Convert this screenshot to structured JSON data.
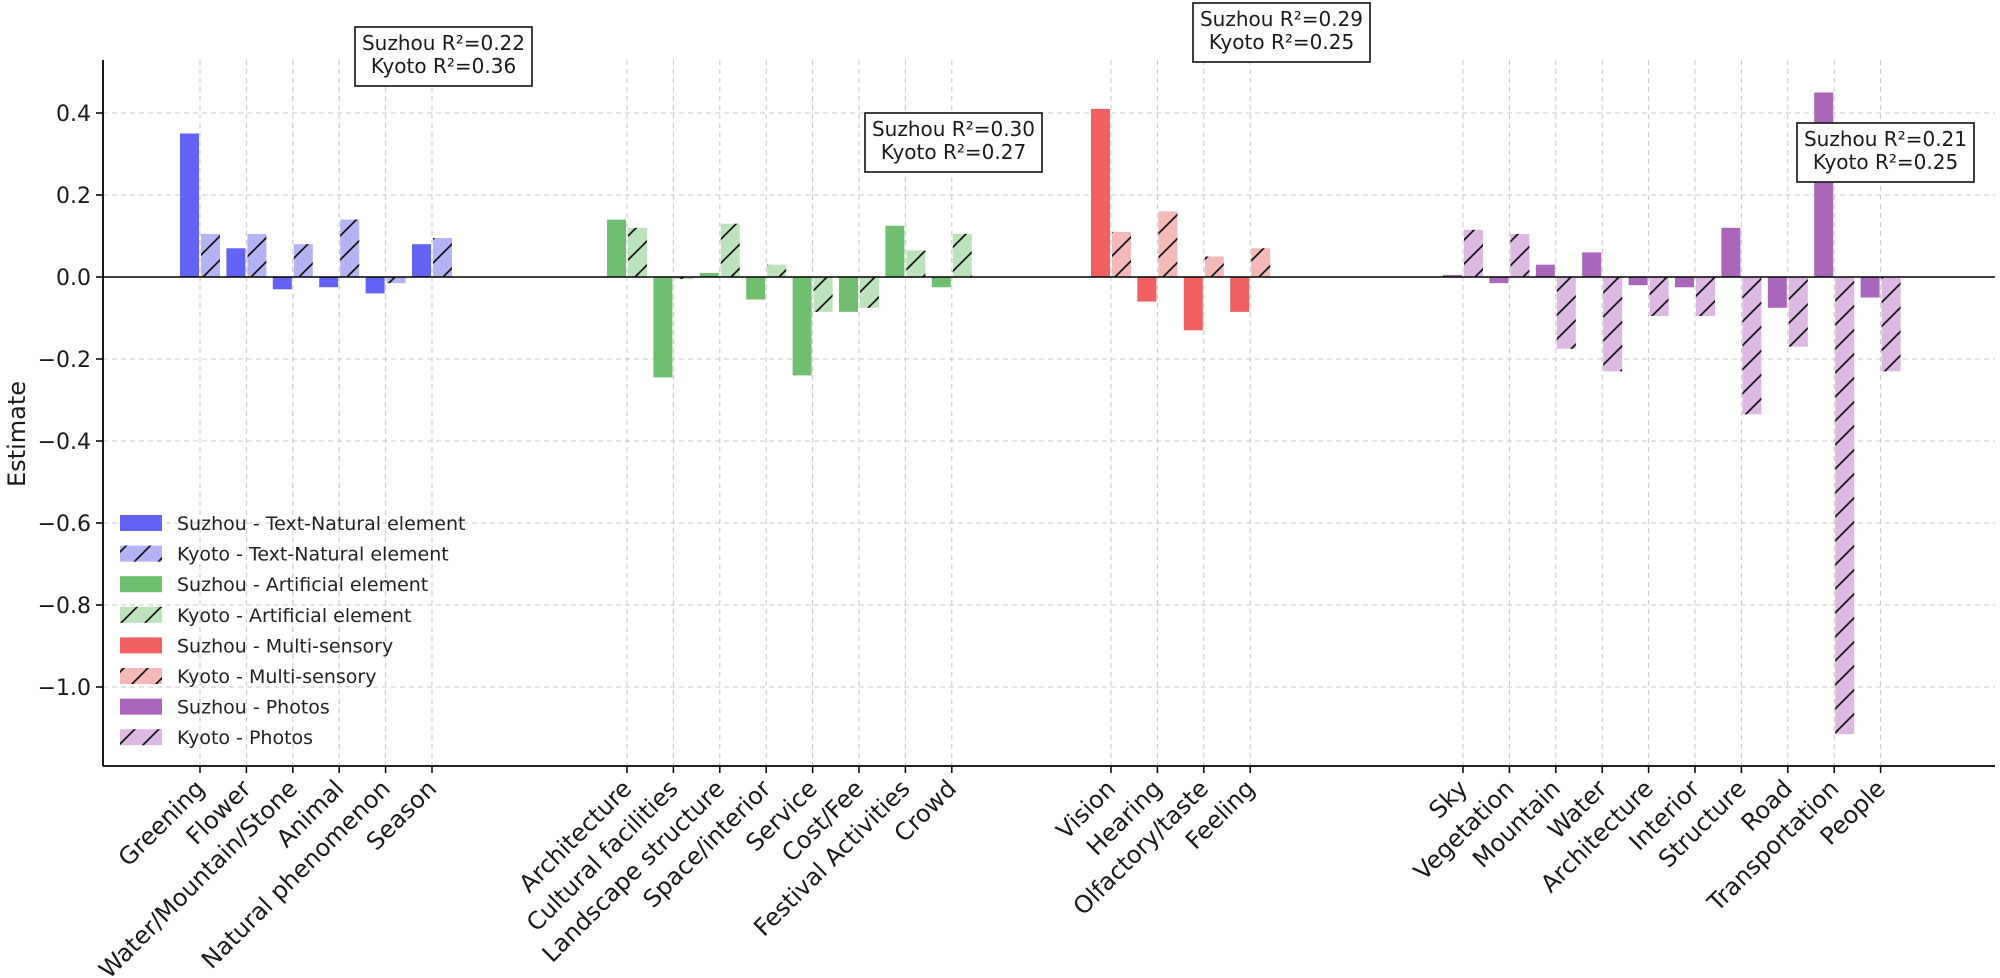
{
  "chart_data": {
    "type": "bar",
    "title": "",
    "xlabel": "",
    "ylabel": "Estimate",
    "ylim": [
      -1.2,
      0.53
    ],
    "yticks": [
      -1.0,
      -0.8,
      -0.6,
      -0.4,
      -0.2,
      0.0,
      0.2,
      0.4
    ],
    "ytick_labels": [
      "−1.0",
      "−0.8",
      "−0.6",
      "−0.4",
      "−0.2",
      "0.0",
      "0.2",
      "0.4"
    ],
    "grid": true,
    "legend_position": "lower-left",
    "groups": [
      {
        "name": "Text-Natural element",
        "color": "#6262f5",
        "kyoto_color": "#b3b3f5",
        "categories": [
          "Greening",
          "Flower",
          "Water/Mountain/Stone",
          "Animal",
          "Natural phenomenon",
          "Season"
        ],
        "suzhou": [
          0.35,
          0.07,
          -0.03,
          -0.025,
          -0.04,
          0.08
        ],
        "kyoto": [
          0.105,
          0.105,
          0.08,
          0.14,
          -0.015,
          0.095
        ],
        "annotation": [
          "Suzhou R²=0.22",
          "Kyoto R²=0.36"
        ]
      },
      {
        "name": "Artificial element",
        "color": "#70bf70",
        "kyoto_color": "#bde3bd",
        "categories": [
          "Architecture",
          "Cultural facilities",
          "Landscape structure",
          "Space/interior",
          "Service",
          "Cost/Fee",
          "Festival Activities",
          "Crowd"
        ],
        "suzhou": [
          0.14,
          -0.245,
          0.01,
          -0.055,
          -0.24,
          -0.085,
          0.125,
          -0.025
        ],
        "kyoto": [
          0.12,
          -0.005,
          0.13,
          0.03,
          -0.085,
          -0.075,
          0.065,
          0.105
        ],
        "annotation": [
          "Suzhou R²=0.30",
          "Kyoto R²=0.27"
        ]
      },
      {
        "name": "Multi-sensory",
        "color": "#f06060",
        "kyoto_color": "#f5b8b8",
        "categories": [
          "Vision",
          "Hearing",
          "Olfactory/taste",
          "Feeling"
        ],
        "suzhou": [
          0.41,
          -0.06,
          -0.13,
          -0.085
        ],
        "kyoto": [
          0.11,
          0.16,
          0.05,
          0.07
        ],
        "annotation": [
          "Suzhou R²=0.29",
          "Kyoto R²=0.25"
        ]
      },
      {
        "name": "Photos",
        "color": "#aa66bb",
        "kyoto_color": "#dcb8e3",
        "categories": [
          "Sky",
          "Vegetation",
          "Mountain",
          "Water",
          "Architecture",
          "Interior",
          "Structure",
          "Road",
          "Transportation",
          "People"
        ],
        "suzhou": [
          0.005,
          -0.015,
          0.03,
          0.06,
          -0.02,
          -0.025,
          0.12,
          -0.075,
          0.45,
          -0.05
        ],
        "kyoto": [
          0.115,
          0.105,
          -0.175,
          -0.23,
          -0.095,
          -0.095,
          -0.335,
          -0.17,
          -1.115,
          -0.23
        ],
        "annotation": [
          "Suzhou R²=0.21",
          "Kyoto R²=0.25"
        ]
      }
    ],
    "legend": [
      "Suzhou - Text-Natural element",
      "Kyoto - Text-Natural element",
      "Suzhou - Artificial element",
      "Kyoto - Artificial element",
      "Suzhou - Multi-sensory",
      "Kyoto - Multi-sensory",
      "Suzhou - Photos",
      "Kyoto - Photos"
    ]
  }
}
